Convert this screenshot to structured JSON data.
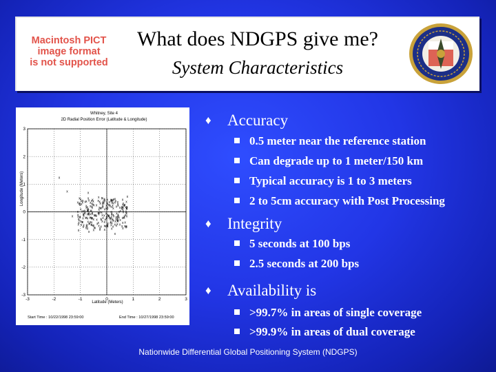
{
  "header": {
    "pict_note": [
      "Macintosh PICT",
      "image format",
      "is not supported"
    ],
    "title": "What does NDGPS give me?",
    "subtitle": "System Characteristics"
  },
  "plot": {
    "title": [
      "Whitney, Site 4",
      "2D Radial Position Error (Latitude & Longitude)"
    ],
    "ylabel": "Longitude (Meters)",
    "xlabel": "Latitude (Meters)",
    "xticks": [
      "-3",
      "-2",
      "-1",
      "0",
      "1",
      "2",
      "3"
    ],
    "yticks": [
      "3",
      "2",
      "1",
      "0",
      "-1",
      "-2",
      "-3"
    ],
    "start_time": "Start Time : 10/22/1998 23:59:00",
    "end_time": "End Time : 10/27/1998 23:59:00",
    "xlim": [
      -3,
      3
    ],
    "ylim": [
      -3,
      3
    ]
  },
  "bullets": [
    {
      "label": "Accuracy",
      "items": [
        "0.5 meter near the reference station",
        "Can degrade up to 1 meter/150 km",
        "Typical accuracy is 1 to 3 meters",
        "2 to 5cm accuracy with Post Processing"
      ]
    },
    {
      "label": "Integrity",
      "items": [
        "5 seconds at 100 bps",
        "2.5 seconds at 200 bps"
      ]
    },
    {
      "label": "Availability is",
      "items": [
        ">99.7% in areas of single coverage",
        ">99.9% in areas of dual coverage"
      ]
    }
  ],
  "footer": "Nationwide Differential Global Positioning System (NDGPS)",
  "colors": {
    "background": "#2236e6",
    "pict_text": "#e2534a",
    "seal_blue": "#1c2f87",
    "seal_gold": "#c9a23a"
  }
}
